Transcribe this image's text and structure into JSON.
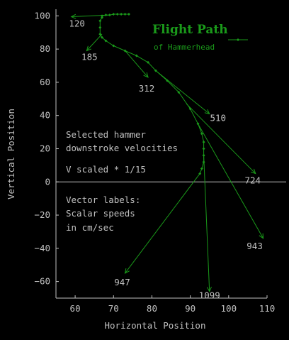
{
  "chart_data": {
    "type": "scatter",
    "title": "Flight Path",
    "subtitle": "of Hammerhead",
    "xlabel": "Horizontal Position",
    "ylabel": "Vertical Position",
    "xlim": [
      55,
      110
    ],
    "ylim": [
      -70,
      104
    ],
    "x_ticks": [
      60,
      70,
      80,
      90,
      100,
      110
    ],
    "y_ticks": [
      100,
      80,
      60,
      40,
      20,
      0,
      -20,
      -40,
      -60
    ],
    "grid": false,
    "colors": {
      "background": "#000000",
      "foreground": "#c0c0c0",
      "series": "#1a9a1a"
    },
    "path": [
      {
        "x": 74,
        "y": 101
      },
      {
        "x": 73,
        "y": 101
      },
      {
        "x": 72,
        "y": 101
      },
      {
        "x": 71,
        "y": 101
      },
      {
        "x": 70,
        "y": 101
      },
      {
        "x": 69,
        "y": 100.5
      },
      {
        "x": 68,
        "y": 100.5
      },
      {
        "x": 67,
        "y": 100
      },
      {
        "x": 67,
        "y": 99
      },
      {
        "x": 66.5,
        "y": 97
      },
      {
        "x": 66.5,
        "y": 93
      },
      {
        "x": 66.5,
        "y": 89
      },
      {
        "x": 67,
        "y": 87
      },
      {
        "x": 68,
        "y": 85
      },
      {
        "x": 70,
        "y": 82
      },
      {
        "x": 73,
        "y": 79
      },
      {
        "x": 76,
        "y": 76
      },
      {
        "x": 79,
        "y": 72
      },
      {
        "x": 81,
        "y": 67
      },
      {
        "x": 84,
        "y": 61
      },
      {
        "x": 87,
        "y": 54
      },
      {
        "x": 90,
        "y": 44
      },
      {
        "x": 92,
        "y": 35
      },
      {
        "x": 93,
        "y": 29
      },
      {
        "x": 93.5,
        "y": 24
      },
      {
        "x": 93.5,
        "y": 20
      },
      {
        "x": 93.5,
        "y": 16
      },
      {
        "x": 93.5,
        "y": 12
      },
      {
        "x": 93,
        "y": 8
      },
      {
        "x": 92.5,
        "y": 5
      }
    ],
    "vectors": [
      {
        "label": "120",
        "x0": 69,
        "y0": 100.5,
        "x1": 59,
        "y1": 99.5
      },
      {
        "label": "185",
        "x0": 67,
        "y0": 89,
        "x1": 63,
        "y1": 79
      },
      {
        "label": "312",
        "x0": 73,
        "y0": 79,
        "x1": 79,
        "y1": 63
      },
      {
        "label": "510",
        "x0": 81,
        "y0": 67,
        "x1": 95,
        "y1": 41
      },
      {
        "label": "724",
        "x0": 89,
        "y0": 47,
        "x1": 107,
        "y1": 5
      },
      {
        "label": "943",
        "x0": 92,
        "y0": 35,
        "x1": 109,
        "y1": -34
      },
      {
        "label": "1099",
        "x0": 93.5,
        "y0": 16,
        "x1": 95,
        "y1": -66
      },
      {
        "label": "947",
        "x0": 92.5,
        "y0": 5,
        "x1": 73,
        "y1": -55
      }
    ],
    "annotations": [
      {
        "name": "velocity-note-line-1",
        "text": "Selected hammer"
      },
      {
        "name": "velocity-note-line-2",
        "text": "downstroke velocities"
      },
      {
        "name": "velocity-note-line-3",
        "text": "V scaled * 1/15"
      },
      {
        "name": "vector-note-line-1",
        "text": "Vector labels:"
      },
      {
        "name": "vector-note-line-2",
        "text": "Scalar speeds"
      },
      {
        "name": "vector-note-line-3",
        "text": "in cm/sec"
      }
    ]
  }
}
